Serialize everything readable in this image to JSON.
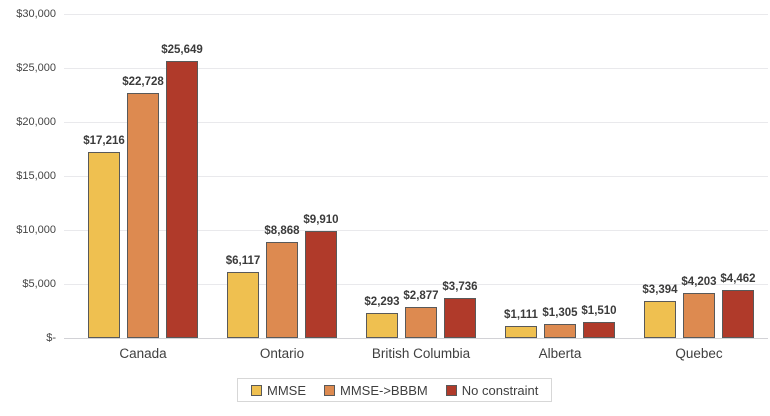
{
  "chart_data": {
    "type": "bar",
    "title": "",
    "xlabel": "",
    "ylabel": "",
    "grid": true,
    "legend_position": "bottom",
    "categories": [
      "Canada",
      "Ontario",
      "British Columbia",
      "Alberta",
      "Quebec"
    ],
    "series": [
      {
        "name": "MMSE",
        "color": "#efc050",
        "values": [
          17216,
          6117,
          2293,
          1111,
          3394
        ],
        "labels": [
          "$17,216",
          "$6,117",
          "$2,293",
          "$1,111",
          "$3,394"
        ]
      },
      {
        "name": "MMSE->BBBM",
        "color": "#dd8a50",
        "values": [
          22728,
          8868,
          2877,
          1305,
          4203
        ],
        "labels": [
          "$22,728",
          "$8,868",
          "$2,877",
          "$1,305",
          "$4,203"
        ]
      },
      {
        "name": "No constraint",
        "color": "#b03a2a",
        "values": [
          25649,
          9910,
          3736,
          1510,
          4462
        ],
        "labels": [
          "$25,649",
          "$9,910",
          "$3,736",
          "$1,510",
          "$4,462"
        ]
      }
    ],
    "y_axis": {
      "min": 0,
      "max": 30000,
      "tick_values": [
        30000,
        25000,
        20000,
        15000,
        10000,
        5000,
        0
      ],
      "tick_labels": [
        "$30,000",
        "$25,000",
        "$20,000",
        "$15,000",
        "$10,000",
        "$5,000",
        "$-"
      ]
    }
  }
}
